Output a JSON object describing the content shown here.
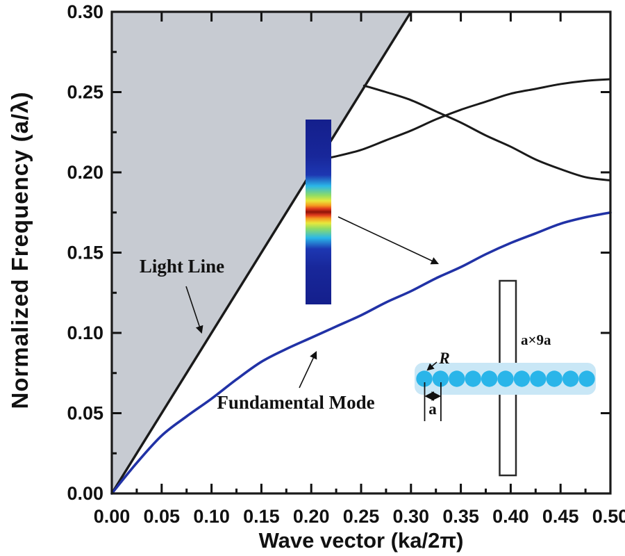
{
  "figure": {
    "background": "#ffffff",
    "frame_color": "#1a1a1a"
  },
  "chart_data": {
    "type": "line",
    "title": "",
    "xlabel": "Wave vector (ka/2π)",
    "ylabel": "Normalized Frequency (a/λ)",
    "xlim": [
      0,
      0.5
    ],
    "ylim": [
      0,
      0.3
    ],
    "grid": false,
    "legend": "none (inline annotations)",
    "x_tick_values": [
      0,
      0.05,
      0.1,
      0.15,
      0.2,
      0.25,
      0.3,
      0.35,
      0.4,
      0.45,
      0.5
    ],
    "x_tick_labels": [
      "0.00",
      "0.05",
      "0.10",
      "0.15",
      "0.20",
      "0.25",
      "0.30",
      "0.35",
      "0.40",
      "0.45",
      "0.50"
    ],
    "y_tick_values": [
      0,
      0.05,
      0.1,
      0.15,
      0.2,
      0.25,
      0.3
    ],
    "y_tick_labels": [
      "0.00",
      "0.05",
      "0.10",
      "0.15",
      "0.20",
      "0.25",
      "0.30"
    ],
    "minor_tick_step": 0.025,
    "shaded_region": {
      "description": "light cone (region above light line)",
      "vertices_xy": [
        [
          0,
          0
        ],
        [
          0.3,
          0.3
        ],
        [
          0,
          0.3
        ]
      ],
      "color": "#c7cbd2"
    },
    "light_line": {
      "label": "Light Line",
      "x": [
        0,
        0.3
      ],
      "y": [
        0,
        0.3
      ],
      "color": "#1a1a1a"
    },
    "series": [
      {
        "name": "Fundamental Mode",
        "color": "#2132a6",
        "x": [
          0,
          0.025,
          0.05,
          0.075,
          0.1,
          0.125,
          0.15,
          0.175,
          0.2,
          0.225,
          0.25,
          0.275,
          0.3,
          0.325,
          0.35,
          0.375,
          0.4,
          0.425,
          0.45,
          0.475,
          0.5
        ],
        "y": [
          0,
          0.019,
          0.036,
          0.048,
          0.059,
          0.071,
          0.082,
          0.09,
          0.097,
          0.104,
          0.111,
          0.119,
          0.126,
          0.134,
          0.141,
          0.149,
          0.156,
          0.162,
          0.168,
          0.172,
          0.175
        ]
      },
      {
        "name": "higher-order band (rising)",
        "color": "#1a1a1a",
        "x": [
          0.208,
          0.225,
          0.25,
          0.275,
          0.3,
          0.325,
          0.35,
          0.375,
          0.4,
          0.425,
          0.45,
          0.475,
          0.5
        ],
        "y": [
          0.208,
          0.21,
          0.214,
          0.22,
          0.226,
          0.233,
          0.239,
          0.244,
          0.249,
          0.252,
          0.255,
          0.257,
          0.258
        ]
      },
      {
        "name": "higher-order band (falling)",
        "color": "#1a1a1a",
        "x": [
          0.253,
          0.275,
          0.3,
          0.325,
          0.35,
          0.375,
          0.4,
          0.425,
          0.45,
          0.475,
          0.5
        ],
        "y": [
          0.254,
          0.25,
          0.245,
          0.238,
          0.231,
          0.223,
          0.216,
          0.208,
          0.202,
          0.197,
          0.195
        ]
      }
    ]
  },
  "annotations": {
    "light_line_label": "Light Line",
    "fundamental_mode_label": "Fundamental Mode"
  },
  "field_inset": {
    "description": "fundamental-mode field profile (jet colormap)",
    "colormap": "jet",
    "stops": [
      [
        0.0,
        "#141f8c"
      ],
      [
        0.2,
        "#18279a"
      ],
      [
        0.3,
        "#1d37b2"
      ],
      [
        0.36,
        "#2bb7e8"
      ],
      [
        0.41,
        "#8fdc66"
      ],
      [
        0.44,
        "#e8e83c"
      ],
      [
        0.465,
        "#f59b20"
      ],
      [
        0.483,
        "#e03a1d"
      ],
      [
        0.5,
        "#8f1408"
      ],
      [
        0.517,
        "#e03a1d"
      ],
      [
        0.535,
        "#f59b20"
      ],
      [
        0.56,
        "#e8e83c"
      ],
      [
        0.59,
        "#8fdc66"
      ],
      [
        0.64,
        "#2bb7e8"
      ],
      [
        0.7,
        "#1d37b2"
      ],
      [
        0.8,
        "#18279a"
      ],
      [
        1.0,
        "#141f8c"
      ]
    ]
  },
  "schematic": {
    "description": "nanoparticle chain waveguide with supercell",
    "num_particles": 11,
    "particle_color": "#2ab5e9",
    "halo_color": "#c9e7f6",
    "box_color": "#2a2a2a",
    "supercell_label": "a×9a",
    "radius_label": "R",
    "period_label": "a"
  }
}
